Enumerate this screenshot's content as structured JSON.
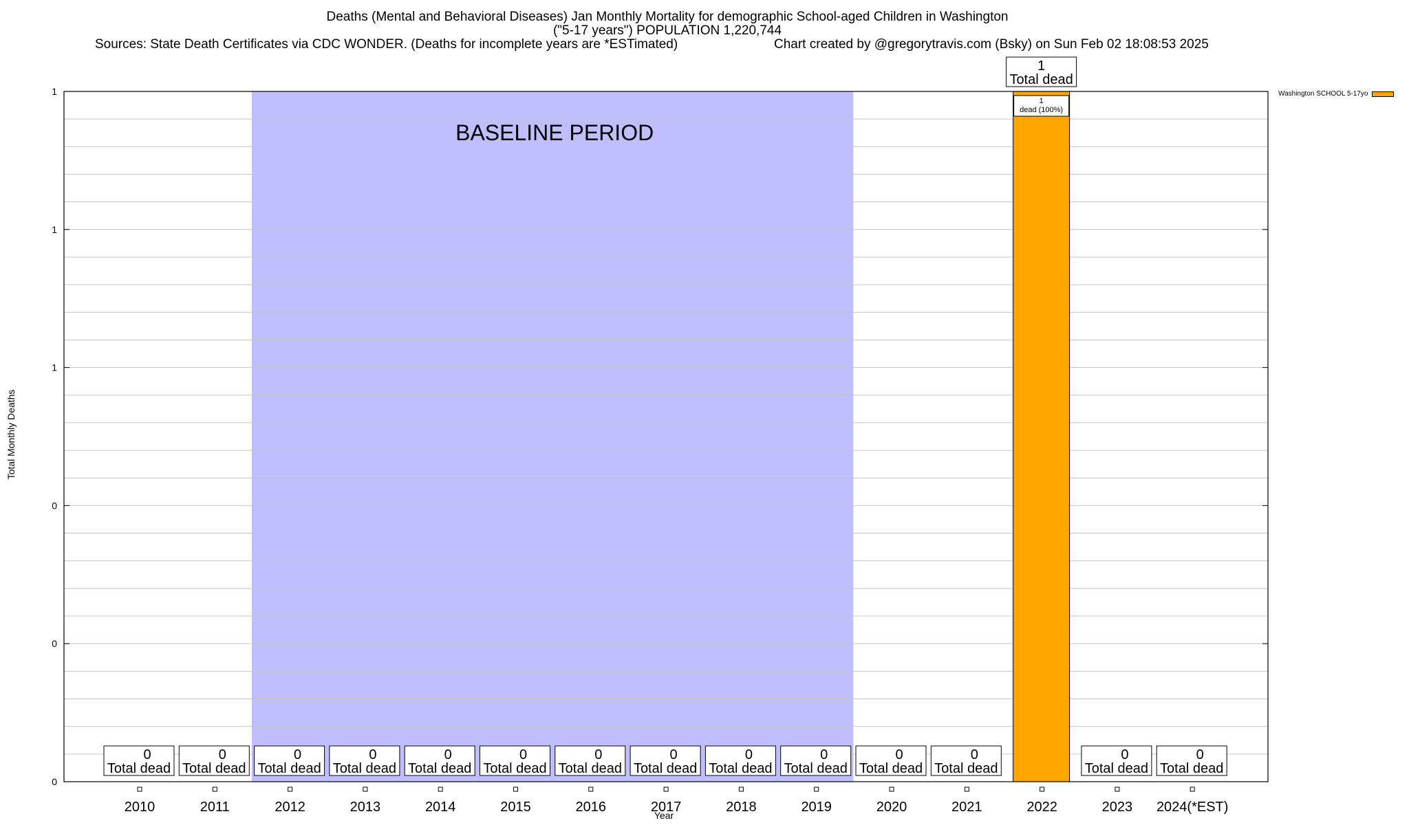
{
  "header": {
    "title_line1": "Deaths (Mental and Behavioral Diseases) Jan Monthly Mortality for demographic School-aged Children in Washington",
    "title_line2": "(\"5-17 years\") POPULATION 1,220,744",
    "sources": "Sources: State Death Certificates via CDC WONDER. (Deaths for incomplete years are *ESTimated)",
    "credit": "Chart created by @gregorytravis.com (Bsky) on Sun Feb 02 18:08:53 2025"
  },
  "chart_data": {
    "type": "bar",
    "title": "Deaths (Mental and Behavioral Diseases) Jan Monthly Mortality for demographic School-aged Children in Washington",
    "xlabel": "Year",
    "ylabel": "Total Monthly Deaths",
    "categories": [
      "2010",
      "2011",
      "2012",
      "2013",
      "2014",
      "2015",
      "2016",
      "2017",
      "2018",
      "2019",
      "2020",
      "2021",
      "2022",
      "2023",
      "2024(*EST)"
    ],
    "series": [
      {
        "name": "Washington SCHOOL 5-17yo",
        "color": "#ffa500",
        "values": [
          0,
          0,
          0,
          0,
          0,
          0,
          0,
          0,
          0,
          0,
          0,
          0,
          1,
          0,
          0
        ]
      }
    ],
    "ylim": [
      0,
      1
    ],
    "y_tick_labels": [
      "0",
      "0",
      "0",
      "1",
      "1",
      "1"
    ],
    "grid": true,
    "legend_position": "top-right",
    "baseline_period": {
      "label": "BASELINE PERIOD",
      "from": "2012",
      "to": "2019",
      "color": "#bfbfff"
    },
    "total_label_suffix": "Total dead",
    "segment_label": {
      "category": "2022",
      "value": "1",
      "text": "dead (100%)"
    }
  }
}
